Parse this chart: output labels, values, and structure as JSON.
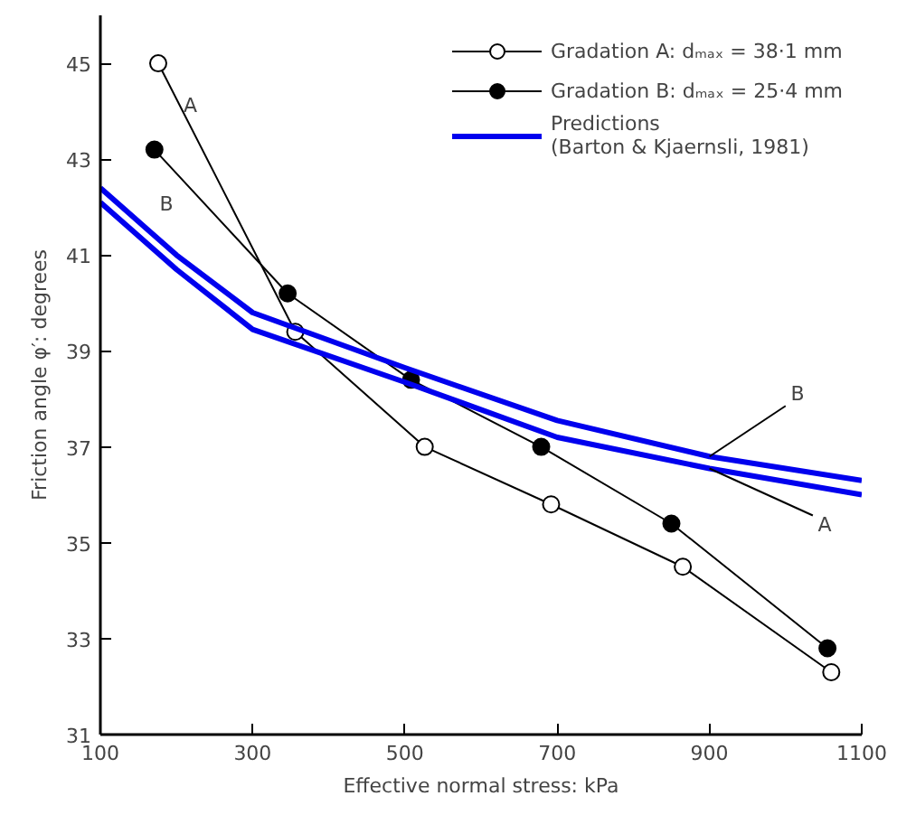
{
  "chart_data": {
    "type": "line",
    "xlabel": "Effective normal stress: kPa",
    "ylabel": "Friction angle φ′: degrees",
    "xlim": [
      100,
      1100
    ],
    "ylim": [
      31,
      46
    ],
    "xticks": [
      100,
      300,
      500,
      700,
      900,
      1100
    ],
    "yticks": [
      31,
      33,
      35,
      37,
      39,
      41,
      43,
      45
    ],
    "grid": false,
    "legend": "top right",
    "series": [
      {
        "name": "Gradation A: dₘₐₓ = 38·1 mm",
        "color": "#ffffff",
        "marker": "circle",
        "x": [
          176,
          356,
          526,
          692,
          865,
          1060
        ],
        "values": [
          45.0,
          39.4,
          37.0,
          35.8,
          34.5,
          32.3
        ]
      },
      {
        "name": "Gradation B: dₘₐₓ = 25·4 mm",
        "color": "#000000",
        "marker": "circle",
        "x": [
          171,
          346,
          508,
          679,
          850,
          1055
        ],
        "values": [
          43.2,
          40.2,
          38.4,
          37.0,
          35.4,
          32.8
        ]
      },
      {
        "name": "Predictions\n(Barton & Kjaernsli, 1981)",
        "color": "#0000ee",
        "marker": "none",
        "x": [
          100,
          200,
          300,
          500,
          700,
          900,
          1100
        ],
        "values": [
          42.4,
          41.0,
          39.8,
          38.65,
          37.55,
          36.8,
          36.3
        ]
      },
      {
        "color": "#0000ee",
        "marker": "none",
        "x": [
          100,
          200,
          300,
          500,
          700,
          900,
          1100
        ],
        "values": [
          42.1,
          40.7,
          39.45,
          38.35,
          37.2,
          36.55,
          36.0
        ]
      }
    ],
    "annotations": [
      {
        "text": "A",
        "x": 176,
        "y": 45.0
      },
      {
        "text": "B",
        "x": 230,
        "y": 42.2
      },
      {
        "text": "B",
        "x": 900,
        "y": 36.8
      },
      {
        "text": "A",
        "x": 900,
        "y": 36.55
      }
    ]
  }
}
